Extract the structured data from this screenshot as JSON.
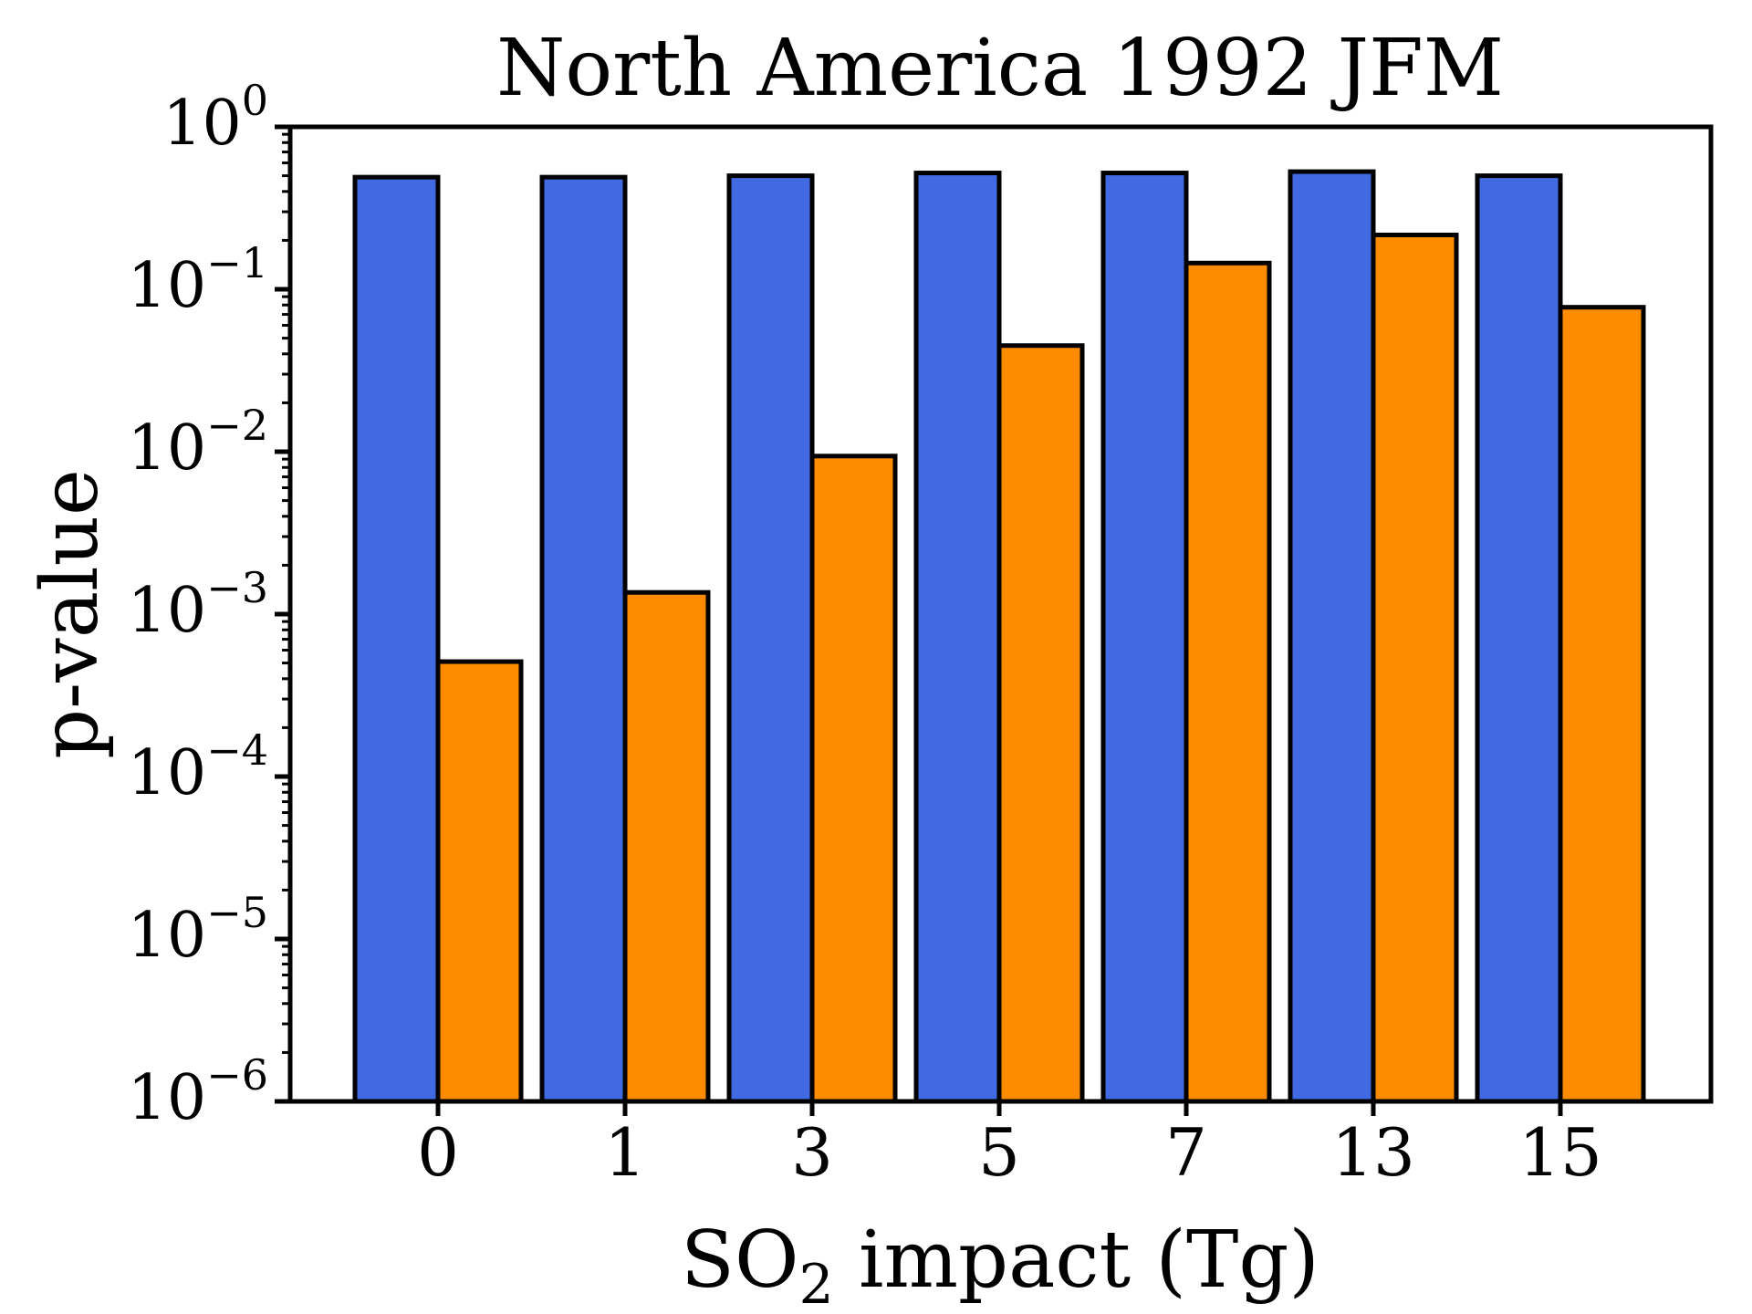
{
  "chart_data": {
    "type": "bar",
    "title": "North America 1992 JFM",
    "xlabel": "SO₂ impact (Tg)",
    "xlabel_parts": {
      "pre": "SO",
      "sub": "2",
      "post": " impact (Tg)"
    },
    "ylabel": "p-value",
    "xscale": "categorical",
    "yscale": "log",
    "ylim": [
      1e-06,
      1
    ],
    "y_tick_exponents": [
      0,
      -1,
      -2,
      -3,
      -4,
      -5,
      -6
    ],
    "grid": false,
    "legend": "none",
    "categories": [
      "0",
      "1",
      "3",
      "5",
      "7",
      "13",
      "15"
    ],
    "series": [
      {
        "name": "blue",
        "color": "#4169E1",
        "values": [
          0.49,
          0.49,
          0.5,
          0.52,
          0.52,
          0.53,
          0.5
        ]
      },
      {
        "name": "orange",
        "color": "#FF8C00",
        "values": [
          0.00051,
          0.00136,
          0.0094,
          0.045,
          0.145,
          0.216,
          0.0775
        ]
      }
    ],
    "bar_edge_color": "#000000",
    "text_color": "#000000",
    "background_color": "#ffffff"
  }
}
